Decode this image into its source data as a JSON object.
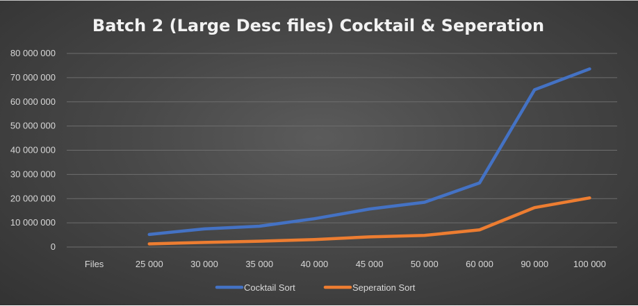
{
  "chart_data": {
    "type": "line",
    "title": "Batch 2 (Large Desc files) Cocktail & Seperation",
    "categories": [
      "Files",
      "25 000",
      "30 000",
      "35 000",
      "40 000",
      "45 000",
      "50 000",
      "60 000",
      "90 000",
      "100 000"
    ],
    "y_ticks": [
      "0",
      "10 000 000",
      "20 000 000",
      "30 000 000",
      "40 000 000",
      "50 000 000",
      "60 000 000",
      "70 000 000",
      "80 000 000"
    ],
    "ylim": [
      0,
      80000000
    ],
    "grid": true,
    "legend_position": "bottom",
    "series": [
      {
        "name": "Cocktail Sort",
        "color": "#4472C4",
        "values": [
          null,
          5200000,
          7500000,
          8600000,
          11700000,
          15700000,
          18500000,
          26500000,
          65000000,
          73600000
        ]
      },
      {
        "name": "Seperation Sort",
        "color": "#ED7D31",
        "values": [
          null,
          1300000,
          1900000,
          2400000,
          3100000,
          4200000,
          4800000,
          7100000,
          16300000,
          20300000
        ]
      }
    ]
  }
}
